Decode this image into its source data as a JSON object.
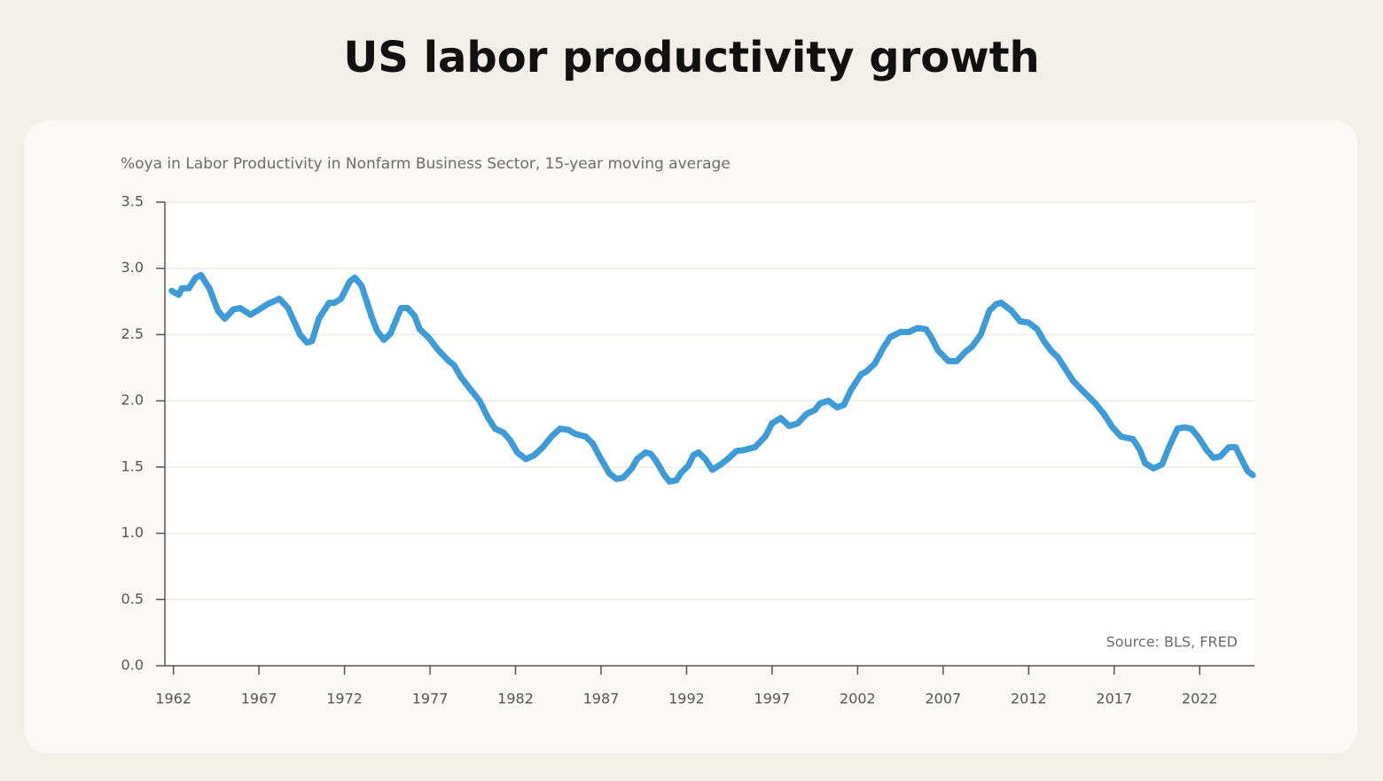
{
  "chart_data": {
    "type": "line",
    "title": "US labor productivity growth",
    "subtitle": "%oya in Labor Productivity in Nonfarm Business Sector, 15-year moving average",
    "annotation": "Source: BLS, FRED",
    "x": [
      1961.9,
      1962.3,
      1962.5,
      1962.9,
      1963.3,
      1963.6,
      1964.1,
      1964.6,
      1965.0,
      1965.5,
      1965.9,
      1966.5,
      1966.9,
      1967.5,
      1968.2,
      1968.7,
      1969.4,
      1969.8,
      1970.1,
      1970.5,
      1971.1,
      1971.4,
      1971.8,
      1972.3,
      1972.6,
      1973.0,
      1973.6,
      1973.9,
      1974.3,
      1974.7,
      1975.3,
      1975.7,
      1976.1,
      1976.4,
      1976.9,
      1977.5,
      1978.1,
      1978.4,
      1978.8,
      1979.4,
      1979.9,
      1980.4,
      1980.8,
      1981.3,
      1981.7,
      1982.1,
      1982.6,
      1983.1,
      1983.6,
      1984.1,
      1984.6,
      1985.1,
      1985.5,
      1986.1,
      1986.5,
      1987.0,
      1987.5,
      1987.9,
      1988.3,
      1988.8,
      1989.1,
      1989.6,
      1989.9,
      1990.2,
      1990.7,
      1991.0,
      1991.4,
      1991.7,
      1992.1,
      1992.4,
      1992.7,
      1993.1,
      1993.5,
      1994.0,
      1994.4,
      1994.9,
      1995.4,
      1996.0,
      1996.6,
      1997.0,
      1997.5,
      1998.0,
      1998.5,
      1999.0,
      1999.5,
      1999.8,
      2000.3,
      2000.8,
      2001.2,
      2001.6,
      2002.2,
      2002.5,
      2003.0,
      2003.5,
      2003.9,
      2004.5,
      2005.0,
      2005.5,
      2006.0,
      2006.3,
      2006.7,
      2007.3,
      2007.8,
      2008.3,
      2008.7,
      2009.2,
      2009.7,
      2010.1,
      2010.4,
      2011.0,
      2011.5,
      2012.0,
      2012.5,
      2012.9,
      2013.3,
      2013.7,
      2014.1,
      2014.6,
      2015.2,
      2015.9,
      2016.4,
      2016.9,
      2017.4,
      2018.1,
      2018.5,
      2018.8,
      2019.3,
      2019.8,
      2020.2,
      2020.7,
      2021.1,
      2021.5,
      2021.9,
      2022.4,
      2022.8,
      2023.2,
      2023.7,
      2024.1,
      2024.4,
      2024.8,
      2025.1
    ],
    "series": [
      {
        "color": "#3d9bd7",
        "values": [
          2.83,
          2.8,
          2.85,
          2.85,
          2.93,
          2.95,
          2.85,
          2.68,
          2.62,
          2.69,
          2.7,
          2.65,
          2.68,
          2.73,
          2.77,
          2.7,
          2.5,
          2.44,
          2.45,
          2.62,
          2.74,
          2.74,
          2.77,
          2.9,
          2.93,
          2.87,
          2.63,
          2.53,
          2.46,
          2.51,
          2.7,
          2.7,
          2.64,
          2.54,
          2.48,
          2.38,
          2.3,
          2.27,
          2.18,
          2.08,
          2.0,
          1.87,
          1.79,
          1.76,
          1.7,
          1.61,
          1.56,
          1.59,
          1.65,
          1.73,
          1.79,
          1.78,
          1.75,
          1.73,
          1.68,
          1.56,
          1.45,
          1.41,
          1.42,
          1.49,
          1.56,
          1.61,
          1.6,
          1.55,
          1.44,
          1.39,
          1.4,
          1.46,
          1.51,
          1.59,
          1.61,
          1.56,
          1.48,
          1.52,
          1.56,
          1.62,
          1.63,
          1.65,
          1.73,
          1.83,
          1.87,
          1.81,
          1.83,
          1.9,
          1.93,
          1.98,
          2.0,
          1.95,
          1.97,
          2.08,
          2.2,
          2.22,
          2.28,
          2.4,
          2.48,
          2.52,
          2.52,
          2.55,
          2.54,
          2.48,
          2.38,
          2.3,
          2.3,
          2.37,
          2.41,
          2.5,
          2.68,
          2.73,
          2.74,
          2.68,
          2.6,
          2.59,
          2.54,
          2.45,
          2.38,
          2.33,
          2.25,
          2.15,
          2.07,
          1.98,
          1.9,
          1.8,
          1.73,
          1.71,
          1.63,
          1.53,
          1.49,
          1.52,
          1.65,
          1.79,
          1.8,
          1.79,
          1.73,
          1.63,
          1.57,
          1.58,
          1.65,
          1.65,
          1.57,
          1.47,
          1.44
        ]
      }
    ],
    "xlim": [
      1961.5,
      2025.2
    ],
    "xticks": [
      1962,
      1967,
      1972,
      1977,
      1982,
      1987,
      1992,
      1997,
      2002,
      2007,
      2012,
      2017,
      2022
    ],
    "ylim": [
      0,
      3.5
    ],
    "yticks": [
      {
        "value": 0,
        "label": "0.0"
      },
      0.5,
      {
        "value": 1,
        "label": "1.0"
      },
      1.5,
      {
        "value": 2,
        "label": "2.0"
      },
      2.5,
      {
        "value": 3,
        "label": "3.0"
      },
      3.5
    ],
    "grid": true
  }
}
